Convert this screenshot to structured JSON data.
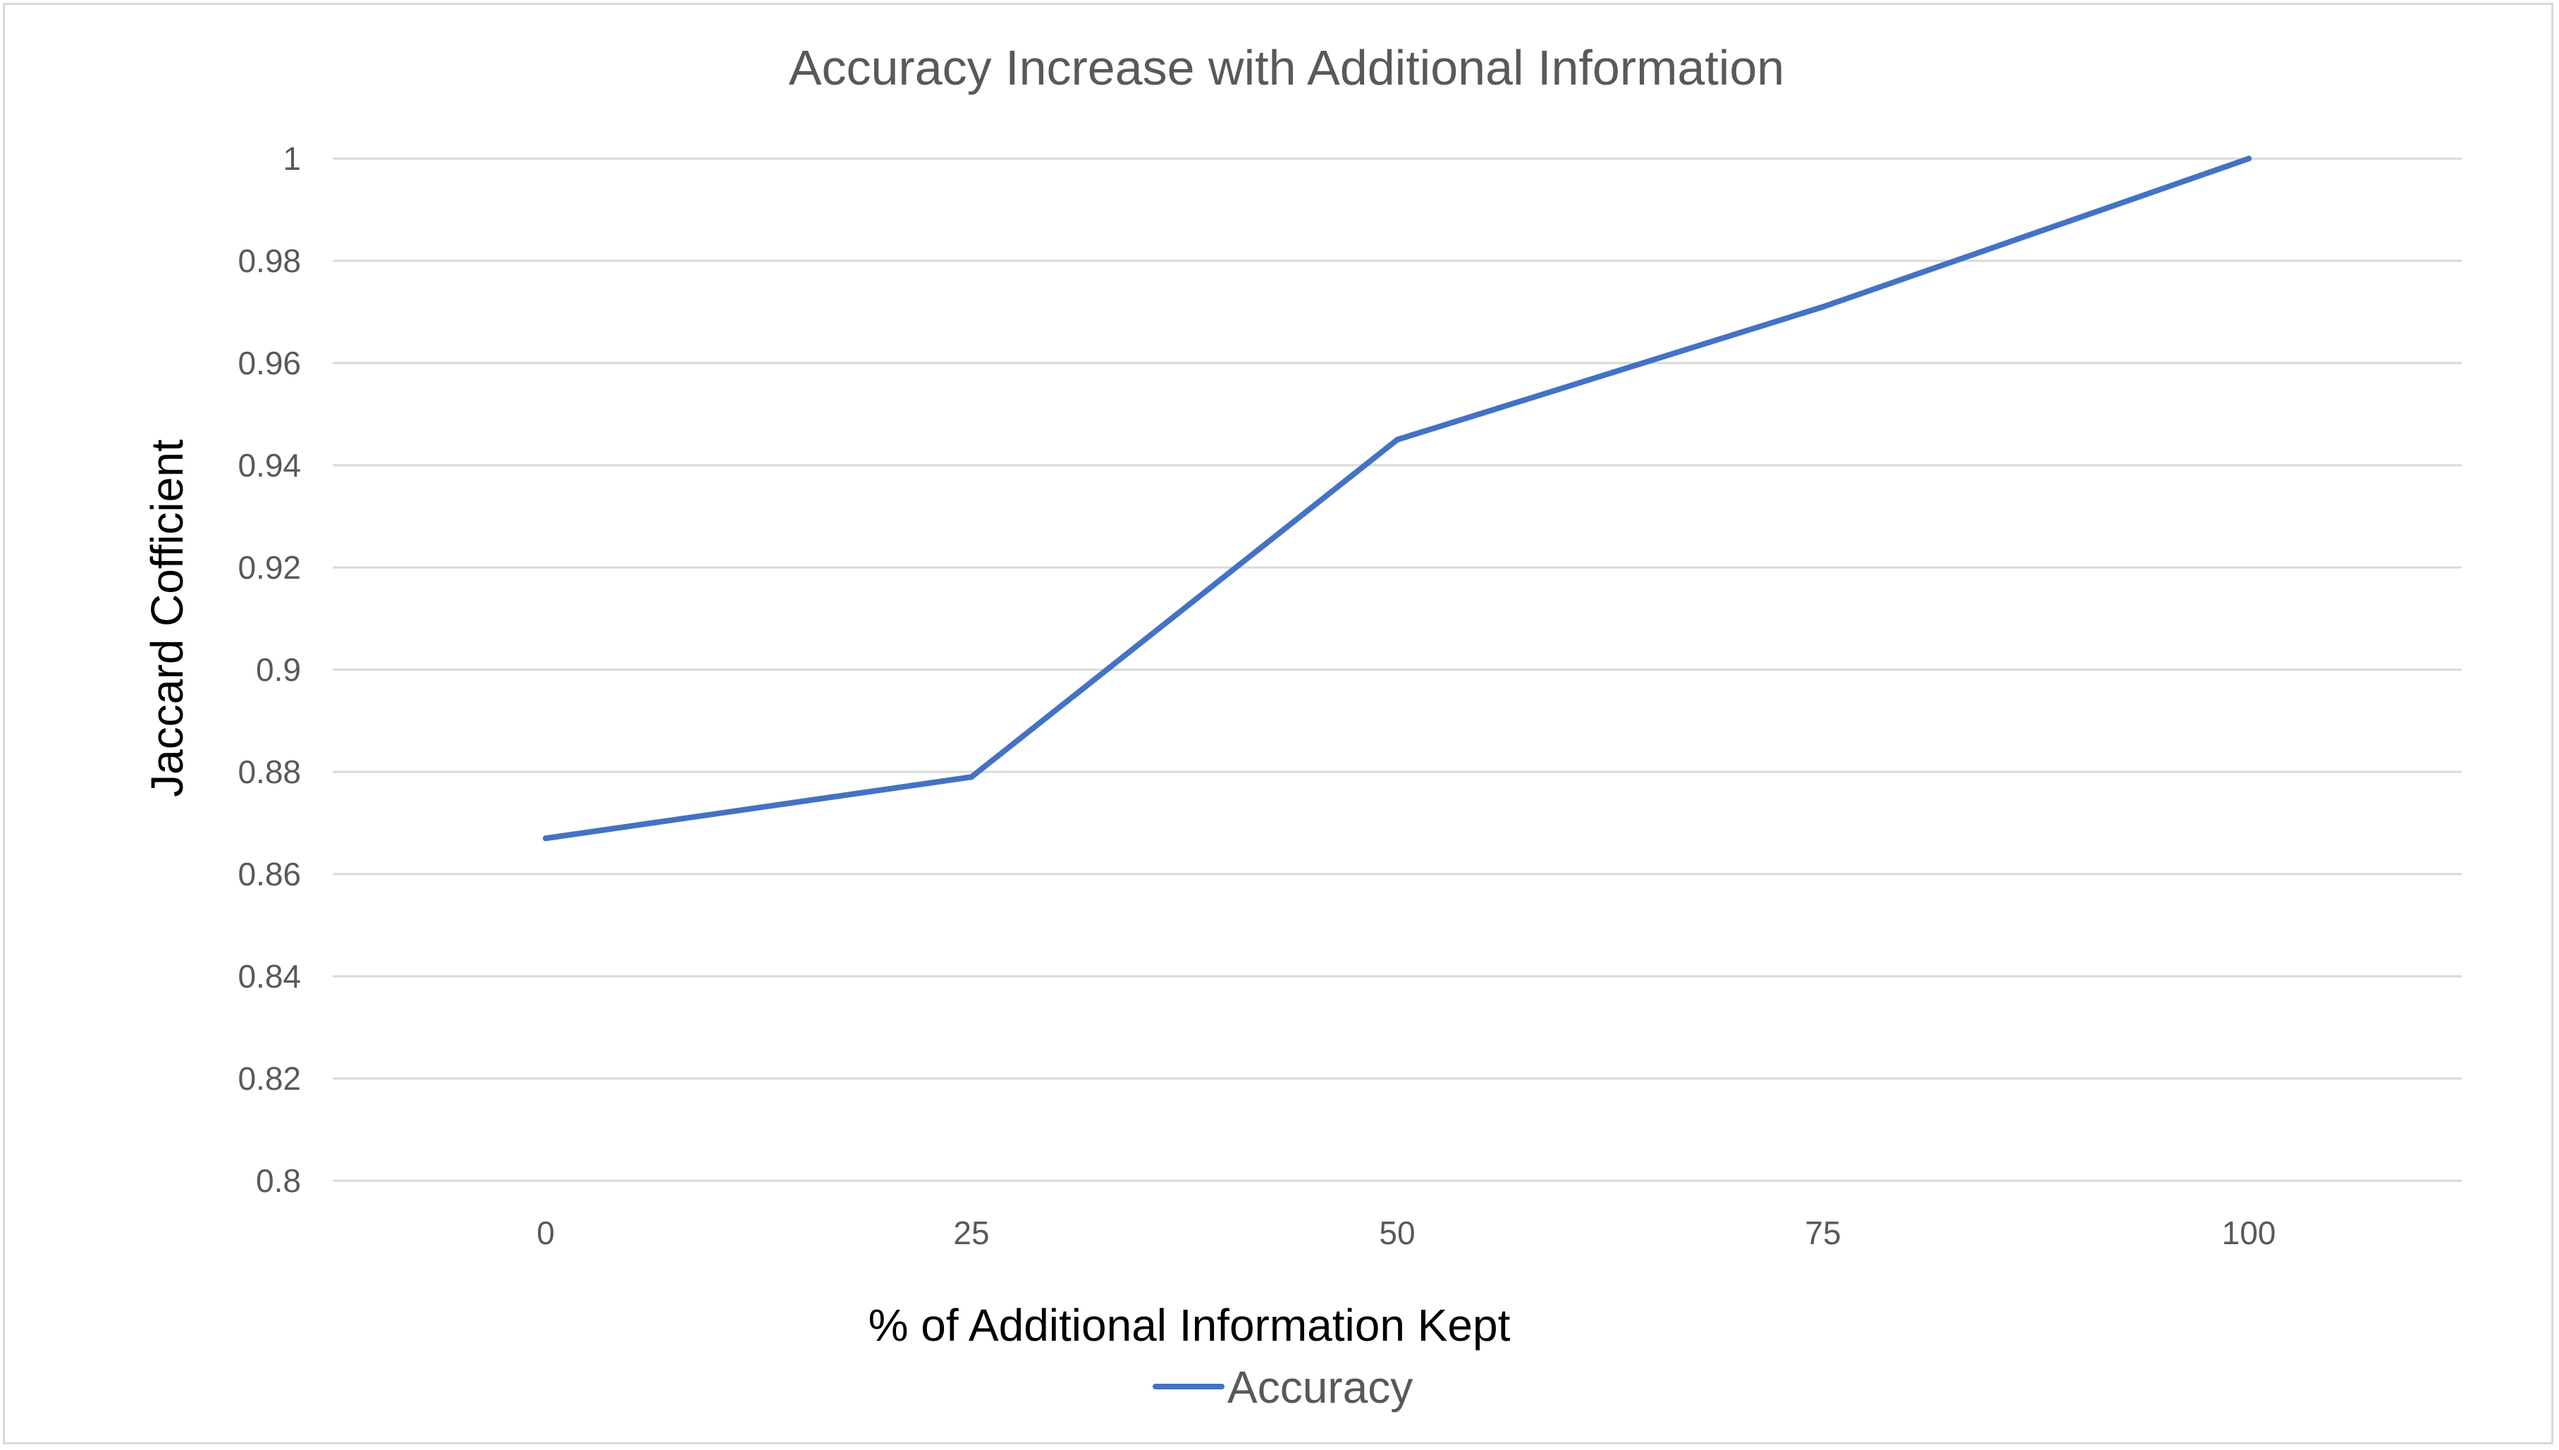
{
  "chart_data": {
    "type": "line",
    "title": "Accuracy Increase with Additional Information",
    "xlabel": "% of Additional Information Kept",
    "ylabel": "Jaccard Cofficient",
    "categories": [
      "0",
      "25",
      "50",
      "75",
      "100"
    ],
    "ylim": [
      0.8,
      1
    ],
    "yticks": [
      "0.8",
      "0.82",
      "0.84",
      "0.86",
      "0.88",
      "0.9",
      "0.92",
      "0.94",
      "0.96",
      "0.98",
      "1"
    ],
    "grid": true,
    "legend_position": "bottom",
    "series": [
      {
        "name": "Accuracy",
        "values": [
          0.867,
          0.879,
          0.945,
          0.971,
          1.0
        ],
        "color": "#4472c4"
      }
    ]
  }
}
